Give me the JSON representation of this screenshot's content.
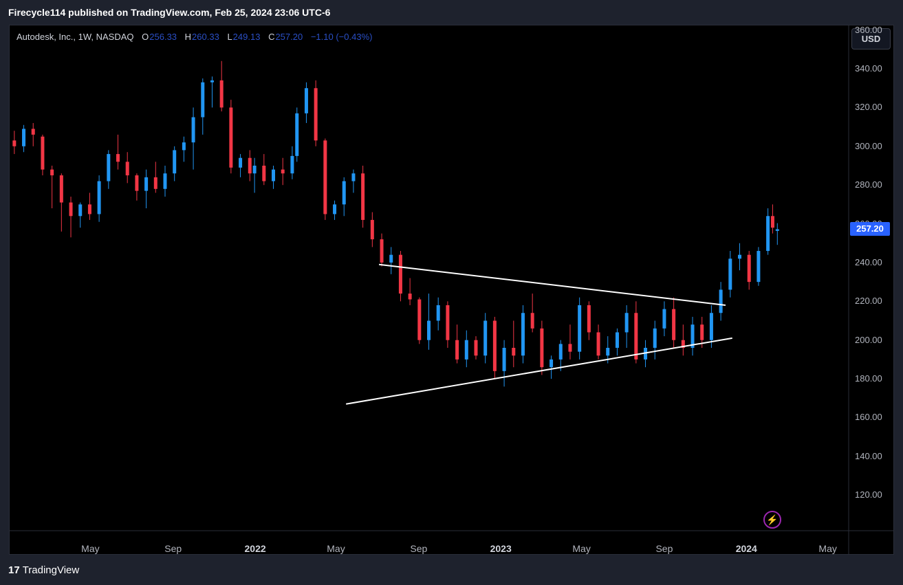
{
  "header": {
    "publish_text": "Firecycle114 published on TradingView.com, Feb 25, 2024 23:06 UTC-6"
  },
  "legend": {
    "symbol": "Autodesk, Inc., 1W, NASDAQ",
    "open_label": "O",
    "open": "256.33",
    "high_label": "H",
    "high": "260.33",
    "low_label": "L",
    "low": "249.13",
    "close_label": "C",
    "close": "257.20",
    "change": "−1.10 (−0.43%)"
  },
  "currency_button": "USD",
  "last_price_tag": "257.20",
  "brand": {
    "logo": "17",
    "name": "TradingView"
  },
  "icons": {
    "alert": "lightning-bolt-icon"
  },
  "colors": {
    "up": "#2196f3",
    "down": "#f23645",
    "trendline": "#ffffff",
    "price_tag": "#2962ff",
    "background": "#000000"
  },
  "chart_data": {
    "type": "candlestick",
    "interval": "1W",
    "symbol": "ADSK",
    "y_ticks": [
      "360.00",
      "340.00",
      "320.00",
      "300.00",
      "280.00",
      "260.00",
      "240.00",
      "220.00",
      "200.00",
      "180.00",
      "160.00",
      "140.00",
      "120.00"
    ],
    "x_ticks": [
      {
        "label": "May",
        "date": "2021-05-01",
        "bold": false
      },
      {
        "label": "Sep",
        "date": "2021-09-01",
        "bold": false
      },
      {
        "label": "2022",
        "date": "2022-01-01",
        "bold": true
      },
      {
        "label": "May",
        "date": "2022-05-01",
        "bold": false
      },
      {
        "label": "Sep",
        "date": "2022-09-01",
        "bold": false
      },
      {
        "label": "2023",
        "date": "2023-01-01",
        "bold": true
      },
      {
        "label": "May",
        "date": "2023-05-01",
        "bold": false
      },
      {
        "label": "Sep",
        "date": "2023-09-01",
        "bold": false
      },
      {
        "label": "2024",
        "date": "2024-01-01",
        "bold": true
      },
      {
        "label": "May",
        "date": "2024-05-01",
        "bold": false
      }
    ],
    "x_range": [
      "2021-01-01",
      "2024-06-01"
    ],
    "ylim": [
      102,
      362
    ],
    "last_price": 257.2,
    "candles": [
      [
        "2021-01-08",
        303,
        308,
        296,
        300
      ],
      [
        "2021-01-22",
        300,
        311,
        297,
        309
      ],
      [
        "2021-02-05",
        309,
        312,
        300,
        306
      ],
      [
        "2021-02-19",
        305,
        306,
        285,
        288
      ],
      [
        "2021-03-05",
        288,
        290,
        268,
        285
      ],
      [
        "2021-03-19",
        285,
        286,
        256,
        271
      ],
      [
        "2021-04-02",
        271,
        274,
        253,
        264
      ],
      [
        "2021-04-16",
        264,
        271,
        258,
        270
      ],
      [
        "2021-04-30",
        270,
        276,
        262,
        265
      ],
      [
        "2021-05-14",
        265,
        285,
        261,
        282
      ],
      [
        "2021-05-28",
        282,
        298,
        278,
        296
      ],
      [
        "2021-06-11",
        296,
        306,
        288,
        292
      ],
      [
        "2021-06-25",
        292,
        297,
        281,
        285
      ],
      [
        "2021-07-09",
        285,
        286,
        272,
        277
      ],
      [
        "2021-07-23",
        277,
        288,
        268,
        284
      ],
      [
        "2021-08-06",
        284,
        292,
        276,
        278
      ],
      [
        "2021-08-20",
        278,
        290,
        274,
        286
      ],
      [
        "2021-09-03",
        286,
        300,
        282,
        298
      ],
      [
        "2021-09-17",
        298,
        305,
        292,
        302
      ],
      [
        "2021-10-01",
        302,
        320,
        288,
        315
      ],
      [
        "2021-10-15",
        315,
        335,
        306,
        333
      ],
      [
        "2021-10-29",
        333,
        336,
        320,
        334
      ],
      [
        "2021-11-12",
        334,
        344,
        318,
        320
      ],
      [
        "2021-11-26",
        320,
        324,
        286,
        289
      ],
      [
        "2021-12-10",
        289,
        296,
        284,
        294
      ],
      [
        "2021-12-24",
        294,
        298,
        282,
        286
      ],
      [
        "2021-12-31",
        286,
        294,
        276,
        290
      ],
      [
        "2022-01-14",
        290,
        296,
        280,
        282
      ],
      [
        "2022-01-28",
        282,
        290,
        278,
        288
      ],
      [
        "2022-02-11",
        288,
        294,
        280,
        286
      ],
      [
        "2022-02-25",
        286,
        300,
        283,
        295
      ],
      [
        "2022-03-04",
        295,
        320,
        292,
        317
      ],
      [
        "2022-03-18",
        317,
        333,
        312,
        330
      ],
      [
        "2022-04-01",
        330,
        334,
        300,
        303
      ],
      [
        "2022-04-15",
        303,
        304,
        262,
        265
      ],
      [
        "2022-04-29",
        265,
        272,
        262,
        270
      ],
      [
        "2022-05-13",
        270,
        284,
        264,
        282
      ],
      [
        "2022-05-27",
        282,
        288,
        276,
        286
      ],
      [
        "2022-06-10",
        286,
        290,
        258,
        262
      ],
      [
        "2022-06-24",
        262,
        266,
        248,
        252
      ],
      [
        "2022-07-08",
        252,
        255,
        238,
        240
      ],
      [
        "2022-07-22",
        240,
        248,
        234,
        244
      ],
      [
        "2022-08-05",
        244,
        246,
        220,
        224
      ],
      [
        "2022-08-19",
        224,
        232,
        218,
        221
      ],
      [
        "2022-09-02",
        221,
        222,
        198,
        200
      ],
      [
        "2022-09-16",
        200,
        224,
        195,
        210
      ],
      [
        "2022-09-30",
        210,
        222,
        205,
        218
      ],
      [
        "2022-10-14",
        218,
        220,
        196,
        200
      ],
      [
        "2022-10-28",
        200,
        208,
        188,
        190
      ],
      [
        "2022-11-11",
        190,
        205,
        186,
        200
      ],
      [
        "2022-11-25",
        200,
        202,
        190,
        192
      ],
      [
        "2022-12-09",
        192,
        214,
        188,
        210
      ],
      [
        "2022-12-23",
        210,
        212,
        180,
        184
      ],
      [
        "2023-01-06",
        184,
        200,
        176,
        196
      ],
      [
        "2023-01-20",
        196,
        210,
        186,
        192
      ],
      [
        "2023-02-03",
        192,
        218,
        188,
        214
      ],
      [
        "2023-02-17",
        214,
        224,
        204,
        206
      ],
      [
        "2023-03-03",
        206,
        210,
        182,
        186
      ],
      [
        "2023-03-17",
        186,
        192,
        180,
        190
      ],
      [
        "2023-03-31",
        190,
        200,
        184,
        198
      ],
      [
        "2023-04-14",
        198,
        208,
        190,
        194
      ],
      [
        "2023-04-28",
        194,
        222,
        190,
        218
      ],
      [
        "2023-05-12",
        218,
        220,
        200,
        204
      ],
      [
        "2023-05-26",
        204,
        208,
        190,
        192
      ],
      [
        "2023-06-09",
        192,
        202,
        188,
        196
      ],
      [
        "2023-06-23",
        196,
        206,
        192,
        204
      ],
      [
        "2023-07-07",
        204,
        218,
        196,
        214
      ],
      [
        "2023-07-21",
        214,
        220,
        188,
        190
      ],
      [
        "2023-08-04",
        190,
        200,
        186,
        196
      ],
      [
        "2023-08-18",
        196,
        210,
        190,
        206
      ],
      [
        "2023-09-01",
        206,
        220,
        202,
        216
      ],
      [
        "2023-09-15",
        216,
        222,
        196,
        200
      ],
      [
        "2023-09-29",
        200,
        208,
        192,
        196
      ],
      [
        "2023-10-13",
        196,
        212,
        192,
        208
      ],
      [
        "2023-10-27",
        208,
        212,
        196,
        200
      ],
      [
        "2023-11-10",
        200,
        218,
        196,
        214
      ],
      [
        "2023-11-24",
        214,
        230,
        210,
        226
      ],
      [
        "2023-12-08",
        226,
        246,
        222,
        242
      ],
      [
        "2023-12-22",
        242,
        250,
        236,
        244
      ],
      [
        "2024-01-05",
        244,
        246,
        226,
        230
      ],
      [
        "2024-01-19",
        230,
        248,
        228,
        246
      ],
      [
        "2024-02-02",
        246,
        268,
        244,
        264
      ],
      [
        "2024-02-09",
        264,
        270,
        255,
        258
      ],
      [
        "2024-02-16",
        256.33,
        260.33,
        249.13,
        257.2
      ]
    ],
    "trendlines": [
      {
        "name": "upper",
        "from": [
          "2022-07-04",
          239
        ],
        "to": [
          "2023-12-01",
          218
        ]
      },
      {
        "name": "lower",
        "from": [
          "2022-05-16",
          167
        ],
        "to": [
          "2023-12-11",
          201
        ]
      }
    ]
  }
}
